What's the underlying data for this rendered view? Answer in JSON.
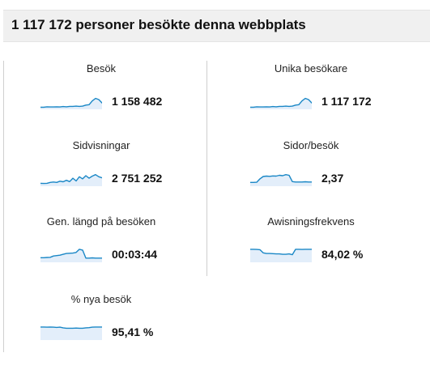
{
  "header": {
    "title": "1 117 172 personer besökte denna webbplats"
  },
  "colors": {
    "spark_line": "#1a87c6",
    "spark_fill": "#e3eefa",
    "header_bg": "#f0f0f0"
  },
  "metrics": [
    {
      "label": "Besök",
      "value": "1 158 482",
      "trend": [
        0.1,
        0.1,
        0.12,
        0.11,
        0.11,
        0.12,
        0.11,
        0.13,
        0.12,
        0.14,
        0.14,
        0.15,
        0.14,
        0.15,
        0.2,
        0.22,
        0.4,
        0.52,
        0.46,
        0.3
      ]
    },
    {
      "label": "Unika besökare",
      "value": "1 117 172",
      "trend": [
        0.1,
        0.1,
        0.12,
        0.11,
        0.11,
        0.12,
        0.11,
        0.13,
        0.12,
        0.14,
        0.14,
        0.15,
        0.14,
        0.15,
        0.2,
        0.22,
        0.4,
        0.52,
        0.46,
        0.3
      ]
    },
    {
      "label": "Sidvisningar",
      "value": "2 751 252",
      "trend": [
        0.14,
        0.13,
        0.14,
        0.18,
        0.2,
        0.18,
        0.24,
        0.21,
        0.28,
        0.22,
        0.38,
        0.25,
        0.45,
        0.35,
        0.5,
        0.38,
        0.48,
        0.55,
        0.45,
        0.4
      ]
    },
    {
      "label": "Sidor/besök",
      "value": "2,37",
      "trend": [
        0.18,
        0.18,
        0.19,
        0.35,
        0.46,
        0.48,
        0.47,
        0.49,
        0.48,
        0.52,
        0.5,
        0.55,
        0.52,
        0.22,
        0.2,
        0.2,
        0.2,
        0.21,
        0.2,
        0.2
      ]
    },
    {
      "label": "Gen. längd på besöken",
      "value": "00:03:44",
      "trend": [
        0.22,
        0.22,
        0.23,
        0.24,
        0.3,
        0.32,
        0.34,
        0.38,
        0.42,
        0.43,
        0.44,
        0.47,
        0.62,
        0.58,
        0.2,
        0.2,
        0.21,
        0.2,
        0.2,
        0.2
      ]
    },
    {
      "label": "Awisningsfrekvens",
      "value": "84,02 %",
      "trend": [
        0.62,
        0.62,
        0.61,
        0.6,
        0.45,
        0.42,
        0.42,
        0.41,
        0.4,
        0.4,
        0.38,
        0.38,
        0.4,
        0.36,
        0.62,
        0.62,
        0.61,
        0.62,
        0.62,
        0.62
      ]
    },
    {
      "label": "% nya besök",
      "value": "95,41 %",
      "trend": [
        0.62,
        0.62,
        0.61,
        0.62,
        0.61,
        0.6,
        0.61,
        0.58,
        0.56,
        0.56,
        0.56,
        0.57,
        0.56,
        0.56,
        0.58,
        0.59,
        0.61,
        0.62,
        0.62,
        0.62
      ]
    }
  ]
}
